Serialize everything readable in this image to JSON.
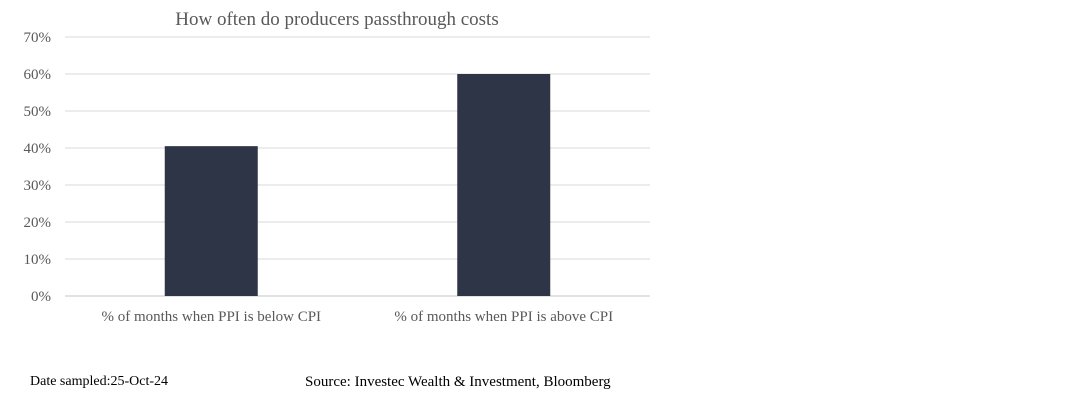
{
  "chart_data": {
    "type": "bar",
    "title": "How often do producers passthrough costs",
    "categories": [
      "% of months when PPI is below CPI",
      "% of months when PPI is above CPI"
    ],
    "values": [
      40.5,
      60
    ],
    "y_ticks": [
      "0%",
      "10%",
      "20%",
      "30%",
      "40%",
      "50%",
      "60%",
      "70%"
    ],
    "ylim": [
      0,
      70
    ],
    "xlabel": "",
    "ylabel": "",
    "grid": true,
    "bar_color": "#2e3547",
    "grid_color": "#d9d9d9"
  },
  "footer": {
    "date_sampled": "Date sampled:25-Oct-24",
    "source": "Source: Investec Wealth & Investment, Bloomberg"
  }
}
